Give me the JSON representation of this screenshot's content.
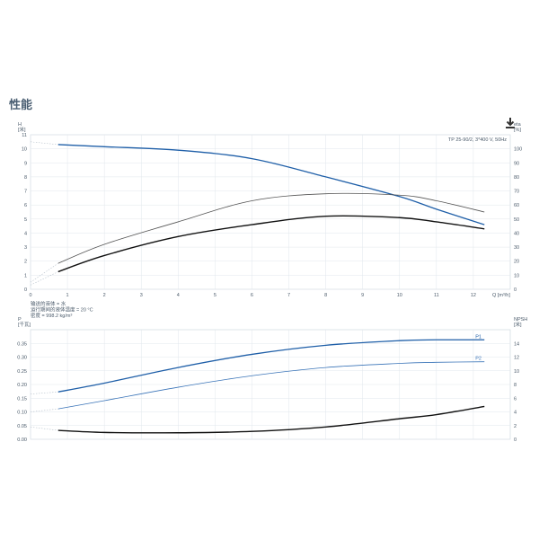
{
  "page": {
    "heading": "性能"
  },
  "icons": {
    "download": "download-icon"
  },
  "chart_data": [
    {
      "type": "line",
      "title": "TP 25-90/2, 3*400 V, 50Hz",
      "x_label": "Q [m³/h]",
      "x_range": [
        0,
        13
      ],
      "x_ticks": [
        0,
        1,
        2,
        3,
        4,
        5,
        6,
        7,
        8,
        9,
        10,
        11,
        12
      ],
      "left_axis": {
        "label": [
          "H",
          "[米]"
        ],
        "range": [
          0,
          11
        ],
        "ticks": [
          0,
          1,
          2,
          3,
          4,
          5,
          6,
          7,
          8,
          9,
          10,
          11
        ]
      },
      "right_axis": {
        "label": [
          "eta",
          "[%]"
        ],
        "range": [
          0,
          110
        ],
        "ticks": [
          0,
          10,
          20,
          30,
          40,
          50,
          60,
          70,
          80,
          90,
          100
        ]
      },
      "grid": true,
      "series": [
        {
          "axis": "left",
          "color": "#1f5fa8",
          "width": 1.3,
          "x": [
            0,
            0.75,
            2,
            4,
            6,
            8,
            10,
            11,
            12.3
          ],
          "y": [
            10.5,
            10.3,
            10.15,
            9.9,
            9.3,
            8.0,
            6.6,
            5.7,
            4.6
          ]
        },
        {
          "axis": "right",
          "color": "#555555",
          "width": 0.8,
          "x": [
            0,
            0.75,
            2,
            4,
            6,
            8,
            10,
            11,
            12.3
          ],
          "y": [
            5,
            18.5,
            32,
            48,
            63,
            68,
            67,
            63,
            55
          ]
        },
        {
          "axis": "right",
          "color": "#111111",
          "width": 1.4,
          "x": [
            0,
            0.75,
            2,
            4,
            6,
            8,
            10,
            11,
            12.3
          ],
          "y": [
            3,
            12.5,
            24,
            37.5,
            46,
            52,
            51,
            48,
            43
          ]
        }
      ],
      "info_lines": [
        "输送的液体 = 水",
        "运行期间的液体温度 = 20 °C",
        "密度 = 998.2 kg/m³"
      ]
    },
    {
      "type": "line",
      "x_range": [
        0,
        13
      ],
      "left_axis": {
        "label": [
          "P",
          "[千瓦]"
        ],
        "range": [
          0,
          0.4
        ],
        "ticks": [
          "0.00",
          "0.05",
          "0.10",
          "0.15",
          "0.20",
          "0.25",
          "0.30",
          "0.35"
        ],
        "tick_values": [
          0,
          0.05,
          0.1,
          0.15,
          0.2,
          0.25,
          0.3,
          0.35
        ]
      },
      "right_axis": {
        "label": [
          "NPSH",
          "[米]"
        ],
        "range": [
          0,
          16
        ],
        "ticks": [
          0,
          2,
          4,
          6,
          8,
          10,
          12,
          14
        ]
      },
      "grid": true,
      "series": [
        {
          "name": "P1",
          "axis": "left",
          "color": "#1f5fa8",
          "width": 1.3,
          "x": [
            0,
            0.75,
            2,
            4,
            6,
            8,
            10,
            11,
            12.3
          ],
          "y": [
            0.165,
            0.173,
            0.205,
            0.262,
            0.31,
            0.343,
            0.36,
            0.363,
            0.363
          ]
        },
        {
          "name": "P2",
          "axis": "left",
          "color": "#3a74b8",
          "width": 0.8,
          "x": [
            0,
            0.75,
            2,
            4,
            6,
            8,
            10,
            11,
            12.3
          ],
          "y": [
            0.1,
            0.111,
            0.141,
            0.19,
            0.232,
            0.262,
            0.277,
            0.281,
            0.283
          ]
        },
        {
          "axis": "right",
          "color": "#111111",
          "width": 1.4,
          "x": [
            0,
            0.75,
            2,
            4,
            6,
            8,
            10,
            11,
            12.3
          ],
          "y": [
            1.8,
            1.3,
            1.0,
            0.95,
            1.15,
            1.8,
            3.0,
            3.6,
            4.8
          ]
        }
      ]
    }
  ]
}
